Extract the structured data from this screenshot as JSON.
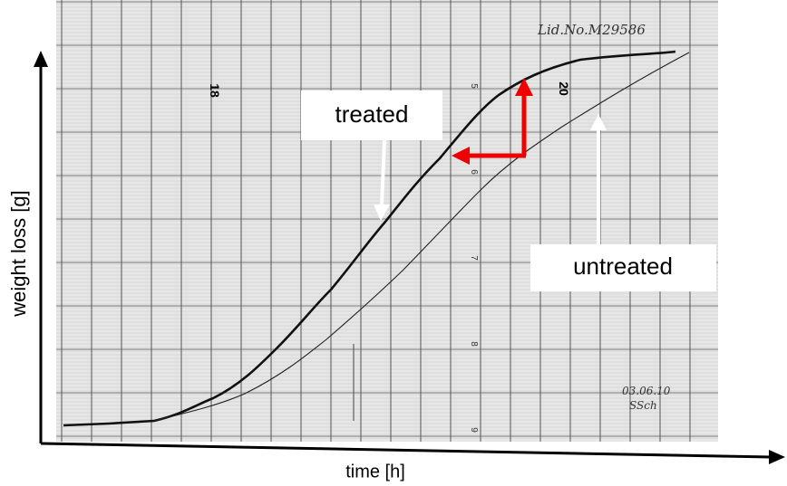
{
  "axes": {
    "y_label": "weight loss [g]",
    "x_label": "time [h]"
  },
  "annotations": {
    "treated": "treated",
    "untreated": "untreated"
  },
  "paper": {
    "header": "Lid.No.M29586",
    "date": "03.06.10",
    "signature": "SSch",
    "hour_marks": [
      "18",
      "20"
    ],
    "scale_marks": [
      "5",
      "6",
      "7",
      "8",
      "9"
    ]
  }
}
